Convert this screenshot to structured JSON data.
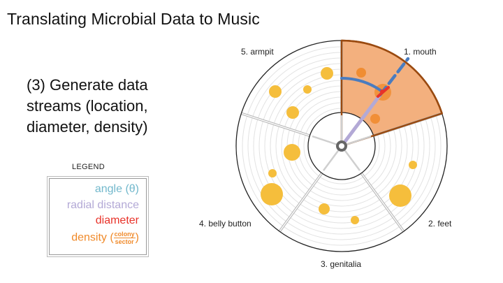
{
  "slide": {
    "title": "Translating Microbial Data to Music",
    "step_text": "(3) Generate data streams (location, diameter, density)"
  },
  "legend": {
    "title": "LEGEND",
    "items": {
      "angle": "angle (θ)",
      "radial": "radial distance",
      "diameter": "diameter",
      "density_word": "density (",
      "density_num": "colony",
      "density_den": "sector",
      "density_close": ")"
    }
  },
  "diagram": {
    "sectors": {
      "mouth": "1. mouth",
      "feet": "2. feet",
      "genitalia": "3. genitalia",
      "belly": "4. belly button",
      "armpit": "5. armpit"
    }
  },
  "colors": {
    "angle": "#72b8cc",
    "radial": "#b3a9d6",
    "diameter": "#e8332a",
    "density": "#f08a2a",
    "colony": "#f5be3c",
    "highlight_fill": "#f3b07e",
    "highlight_edge": "#9a4a10",
    "arc_blue": "#4a7cbf"
  }
}
